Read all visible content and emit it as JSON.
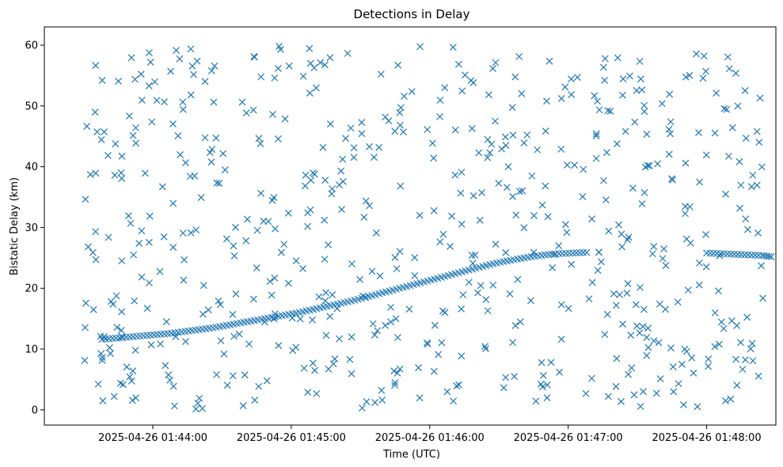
{
  "chart_data": {
    "type": "scatter",
    "title": "Detections in Delay",
    "xlabel": "Time (UTC)",
    "ylabel": "Bistatic Delay (km)",
    "x_tick_labels": [
      "2025-04-26 01:44:00",
      "2025-04-26 01:45:00",
      "2025-04-26 01:46:00",
      "2025-04-26 01:47:00",
      "2025-04-26 01:48:00"
    ],
    "y_ticks": [
      0,
      10,
      20,
      30,
      40,
      50,
      60
    ],
    "xlim_seconds_of_minute_span": [
      "2025-04-26 01:43:13",
      "2025-04-26 01:48:30"
    ],
    "ylim": [
      -2.5,
      63
    ],
    "marker": "x",
    "color": "#1f77b4",
    "grid": false,
    "series": [
      {
        "values_description": "track",
        "x": [
          "01:43:38",
          "01:43:44",
          "01:43:50",
          "01:43:56",
          "01:44:02",
          "01:44:08",
          "01:44:14",
          "01:44:20",
          "01:44:26",
          "01:44:32",
          "01:44:38",
          "01:44:44",
          "01:44:50",
          "01:44:56",
          "01:45:02",
          "01:45:08",
          "01:45:14",
          "01:45:20",
          "01:45:26",
          "01:45:32",
          "01:45:38",
          "01:45:44",
          "01:45:50",
          "01:45:56",
          "01:46:02",
          "01:46:08",
          "01:46:14",
          "01:46:20",
          "01:46:26",
          "01:46:32",
          "01:46:38",
          "01:46:44",
          "01:46:50",
          "01:46:56",
          "01:47:02",
          "01:47:08"
        ],
        "y": [
          11.6,
          11.8,
          12.0,
          12.2,
          12.4,
          12.6,
          12.9,
          13.2,
          13.5,
          13.9,
          14.3,
          14.7,
          15.1,
          15.5,
          15.9,
          16.4,
          16.9,
          17.4,
          17.9,
          18.5,
          19.1,
          19.7,
          20.3,
          20.9,
          21.5,
          22.1,
          22.7,
          23.3,
          23.9,
          24.4,
          24.8,
          25.2,
          25.5,
          25.7,
          25.8,
          25.9
        ]
      },
      {
        "values_description": "track-late",
        "x": [
          "01:48:00",
          "01:48:06",
          "01:48:12",
          "01:48:18",
          "01:48:24",
          "01:48:28"
        ],
        "y": [
          25.8,
          25.7,
          25.6,
          25.5,
          25.4,
          25.2
        ]
      }
    ]
  }
}
